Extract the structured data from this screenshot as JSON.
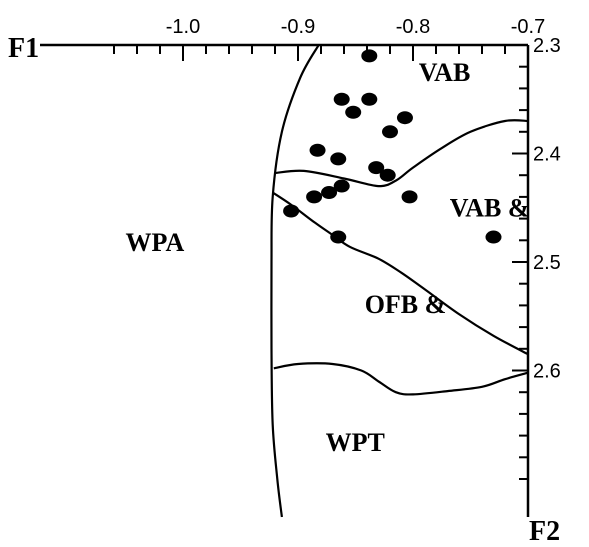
{
  "chart_data": {
    "type": "scatter",
    "title": "",
    "x_axis": {
      "name": "F1",
      "range": [
        -1.06,
        -0.7
      ],
      "position": "top",
      "major_ticks": [
        -1.0,
        -0.9,
        -0.8,
        -0.7
      ],
      "tick_labels": [
        "-1.0",
        "-0.9",
        "-0.8",
        "-0.7"
      ],
      "minor_step": 0.02
    },
    "y_axis": {
      "name": "F2",
      "range": [
        2.3,
        2.74
      ],
      "position": "right",
      "inverted": true,
      "major_ticks": [
        2.3,
        2.4,
        2.5,
        2.6
      ],
      "tick_labels": [
        "2.3",
        "2.4",
        "2.5",
        "2.6"
      ],
      "minor_step": 0.02
    },
    "grid": false,
    "legend": "none",
    "regions": [
      {
        "label": "VAB",
        "anchor": [
          -0.795,
          2.333
        ]
      },
      {
        "label": "VAB &",
        "anchor": [
          -0.768,
          2.458
        ]
      },
      {
        "label": "WPA",
        "anchor": [
          -1.05,
          2.49
        ]
      },
      {
        "label": "OFB &",
        "anchor": [
          -0.842,
          2.547
        ]
      },
      {
        "label": "WPT",
        "anchor": [
          -0.876,
          2.674
        ]
      }
    ],
    "boundaries": [
      {
        "name": "outer-left",
        "points": [
          [
            -0.882,
            2.3
          ],
          [
            -0.898,
            2.33
          ],
          [
            -0.914,
            2.38
          ],
          [
            -0.922,
            2.44
          ],
          [
            -0.923,
            2.5
          ],
          [
            -0.923,
            2.58
          ],
          [
            -0.922,
            2.65
          ],
          [
            -0.918,
            2.7
          ],
          [
            -0.914,
            2.735
          ]
        ]
      },
      {
        "name": "vab-upper",
        "points": [
          [
            -0.92,
            2.418
          ],
          [
            -0.895,
            2.416
          ],
          [
            -0.86,
            2.423
          ],
          [
            -0.83,
            2.43
          ],
          [
            -0.815,
            2.425
          ],
          [
            -0.8,
            2.413
          ],
          [
            -0.775,
            2.395
          ],
          [
            -0.75,
            2.38
          ],
          [
            -0.72,
            2.37
          ],
          [
            -0.7,
            2.37
          ]
        ]
      },
      {
        "name": "ofb-upper",
        "points": [
          [
            -0.922,
            2.436
          ],
          [
            -0.905,
            2.448
          ],
          [
            -0.885,
            2.464
          ],
          [
            -0.87,
            2.475
          ],
          [
            -0.855,
            2.486
          ],
          [
            -0.83,
            2.497
          ],
          [
            -0.81,
            2.51
          ],
          [
            -0.79,
            2.525
          ],
          [
            -0.76,
            2.548
          ],
          [
            -0.73,
            2.568
          ],
          [
            -0.7,
            2.585
          ]
        ]
      },
      {
        "name": "wpt-upper",
        "points": [
          [
            -0.921,
            2.598
          ],
          [
            -0.9,
            2.594
          ],
          [
            -0.87,
            2.594
          ],
          [
            -0.845,
            2.6
          ],
          [
            -0.83,
            2.61
          ],
          [
            -0.815,
            2.62
          ],
          [
            -0.8,
            2.622
          ],
          [
            -0.77,
            2.619
          ],
          [
            -0.74,
            2.615
          ],
          [
            -0.72,
            2.608
          ],
          [
            -0.7,
            2.602
          ]
        ]
      }
    ],
    "points": [
      {
        "x": -0.838,
        "y": 2.31
      },
      {
        "x": -0.862,
        "y": 2.35
      },
      {
        "x": -0.838,
        "y": 2.35
      },
      {
        "x": -0.852,
        "y": 2.362
      },
      {
        "x": -0.807,
        "y": 2.367
      },
      {
        "x": -0.82,
        "y": 2.38
      },
      {
        "x": -0.883,
        "y": 2.397
      },
      {
        "x": -0.865,
        "y": 2.405
      },
      {
        "x": -0.832,
        "y": 2.413
      },
      {
        "x": -0.822,
        "y": 2.42
      },
      {
        "x": -0.862,
        "y": 2.43
      },
      {
        "x": -0.873,
        "y": 2.436
      },
      {
        "x": -0.886,
        "y": 2.44
      },
      {
        "x": -0.803,
        "y": 2.44
      },
      {
        "x": -0.906,
        "y": 2.453
      },
      {
        "x": -0.865,
        "y": 2.477
      },
      {
        "x": -0.73,
        "y": 2.477
      }
    ]
  }
}
